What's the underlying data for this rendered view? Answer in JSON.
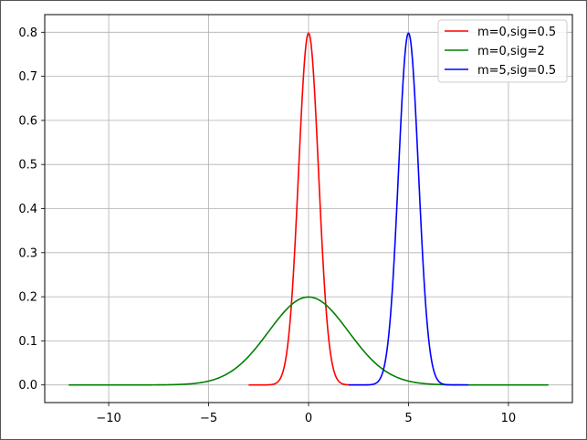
{
  "chart_data": {
    "type": "line",
    "title": "",
    "xlabel": "",
    "ylabel": "",
    "xlim": [
      -13.2,
      13.2
    ],
    "ylim": [
      -0.04,
      0.84
    ],
    "xticks": [
      -10,
      -5,
      0,
      5,
      10
    ],
    "xtick_labels": [
      "−10",
      "−5",
      "0",
      "5",
      "10"
    ],
    "yticks": [
      0.0,
      0.1,
      0.2,
      0.3,
      0.4,
      0.5,
      0.6,
      0.7,
      0.8
    ],
    "ytick_labels": [
      "0.0",
      "0.1",
      "0.2",
      "0.3",
      "0.4",
      "0.5",
      "0.6",
      "0.7",
      "0.8"
    ],
    "grid": true,
    "legend_position": "top-right",
    "series": [
      {
        "name": "m=0,sig=0.5",
        "color": "#ff0000",
        "mean": 0,
        "sigma": 0.5,
        "x_range": [
          -3,
          3
        ]
      },
      {
        "name": "m=0,sig=2",
        "color": "#008000",
        "mean": 0,
        "sigma": 2,
        "x_range": [
          -12,
          12
        ]
      },
      {
        "name": "m=5,sig=0.5",
        "color": "#0000ff",
        "mean": 5,
        "sigma": 0.5,
        "x_range": [
          2,
          8
        ]
      }
    ]
  }
}
